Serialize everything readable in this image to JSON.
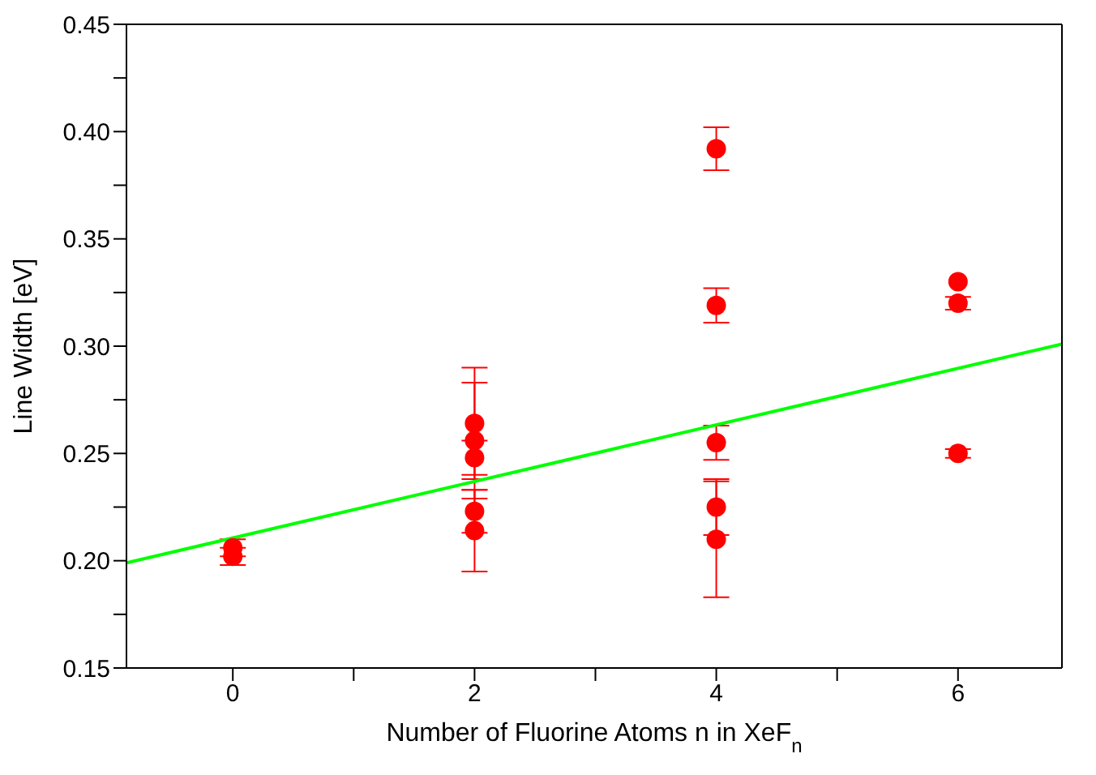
{
  "chart_data": {
    "type": "scatter",
    "xlabel": "Number of Fluorine Atoms n in XeF$_{n}$",
    "ylabel": "Line Width [eV]",
    "series": [
      {
        "color": "#ff0000",
        "marker": "circle",
        "x": [
          0,
          0,
          2,
          2,
          2,
          2,
          2,
          4,
          4,
          4,
          4,
          4,
          6,
          6,
          6
        ],
        "values": [
          0.206,
          0.202,
          0.264,
          0.256,
          0.248,
          0.223,
          0.214,
          0.392,
          0.319,
          0.255,
          0.225,
          0.21,
          0.33,
          0.32,
          0.25
        ],
        "errors": [
          0.004,
          0.004,
          0.026,
          0.027,
          0.008,
          0.01,
          0.019,
          0.01,
          0.008,
          0.008,
          0.013,
          0.027,
          null,
          0.003,
          0.002
        ]
      },
      {
        "type": "line",
        "color": "#00ff00",
        "marker": "none",
        "x": [
          -0.88,
          6.86
        ],
        "values": [
          0.199,
          0.301
        ]
      }
    ],
    "xlim": [
      -0.88,
      6.86
    ],
    "xticks": [
      0,
      {
        "value": 1,
        "label": null
      },
      2,
      {
        "value": 3,
        "label": null
      },
      4,
      {
        "value": 5,
        "label": null
      },
      6
    ],
    "ylim": [
      0.15,
      0.45
    ],
    "yticks": [
      {
        "value": 0.15,
        "label": "0.15"
      },
      {
        "value": 0.175,
        "label": null
      },
      {
        "value": 0.2,
        "label": "0.20"
      },
      {
        "value": 0.225,
        "label": null
      },
      {
        "value": 0.25,
        "label": "0.25"
      },
      {
        "value": 0.275,
        "label": null
      },
      {
        "value": 0.3,
        "label": "0.30"
      },
      {
        "value": 0.325,
        "label": null
      },
      {
        "value": 0.35,
        "label": "0.35"
      },
      {
        "value": 0.375,
        "label": null
      },
      {
        "value": 0.4,
        "label": "0.40"
      },
      {
        "value": 0.425,
        "label": null
      },
      {
        "value": 0.45,
        "label": "0.45"
      }
    ],
    "grid": false
  }
}
